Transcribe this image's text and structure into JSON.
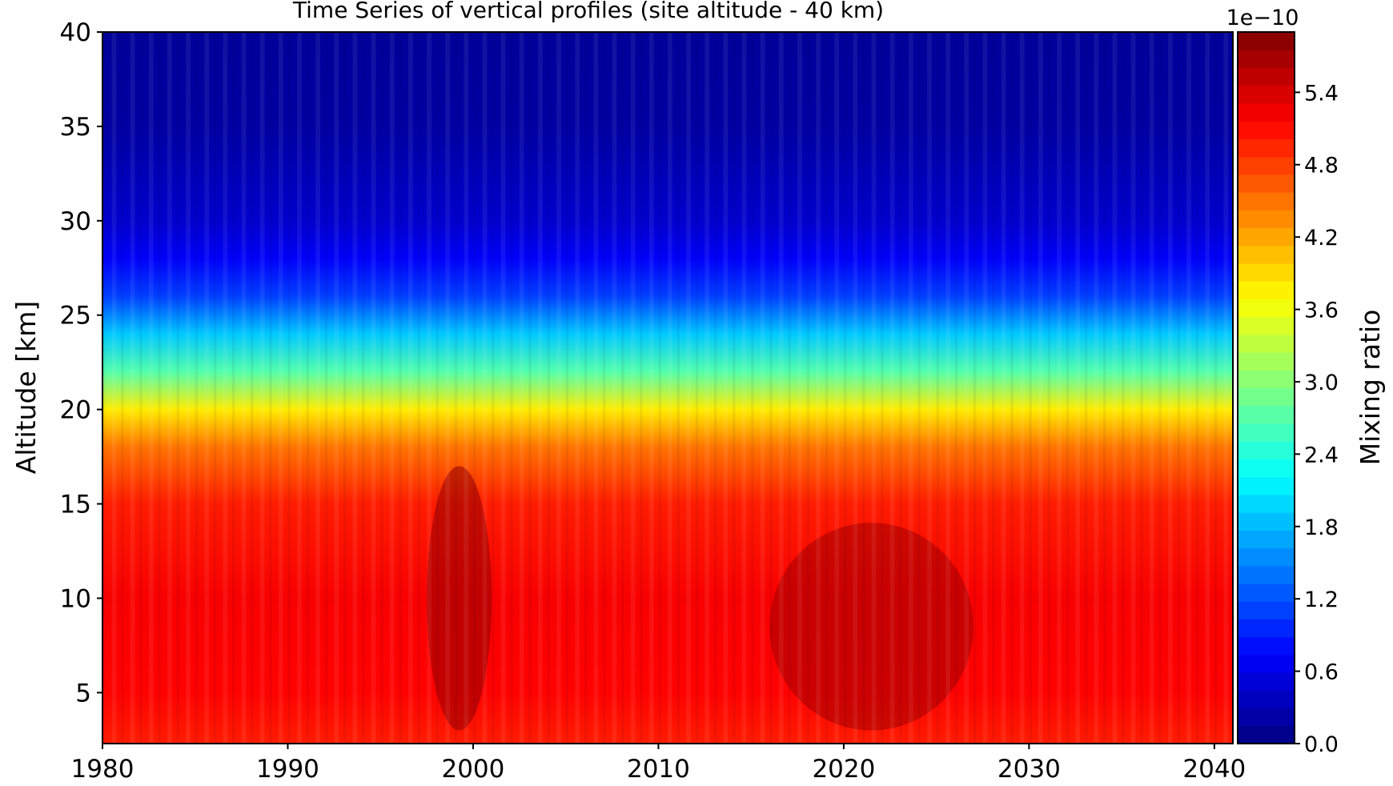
{
  "chart_data": {
    "type": "heatmap",
    "title": "Time Series of vertical profiles (site altitude - 40 km)",
    "xlabel": "",
    "ylabel": "Altitude [km]",
    "xlim": [
      1980,
      2041
    ],
    "ylim": [
      2.3,
      40
    ],
    "x_ticks": [
      1980,
      1990,
      2000,
      2010,
      2020,
      2030,
      2040
    ],
    "y_ticks": [
      5,
      10,
      15,
      20,
      25,
      30,
      35,
      40
    ],
    "colormap": "jet",
    "colorbar": {
      "label": "Mixing ratio",
      "offset_text": "1e−10",
      "range": [
        0.0,
        5.9
      ],
      "ticks": [
        "0.0",
        "0.6",
        "1.2",
        "1.8",
        "2.4",
        "3.0",
        "3.6",
        "4.2",
        "4.8",
        "5.4"
      ],
      "levels": 40
    },
    "profile": {
      "altitude_km": [
        2.3,
        5,
        10,
        15,
        18,
        20,
        22,
        24,
        26,
        28,
        30,
        35,
        40
      ],
      "mixing_ratio_1e-10": [
        5.0,
        5.15,
        5.2,
        5.0,
        4.5,
        3.8,
        2.7,
        1.9,
        1.1,
        0.7,
        0.45,
        0.2,
        0.15
      ]
    },
    "seasonal_cycle_period_years": 1,
    "enhanced_periods": [
      {
        "years": [
          1997.5,
          2001
        ],
        "altitude_km": [
          3,
          17
        ],
        "mixing_ratio_1e-10": 5.8
      },
      {
        "years": [
          2016,
          2027
        ],
        "altitude_km": [
          3,
          14
        ],
        "mixing_ratio_1e-10": 5.7
      }
    ]
  }
}
